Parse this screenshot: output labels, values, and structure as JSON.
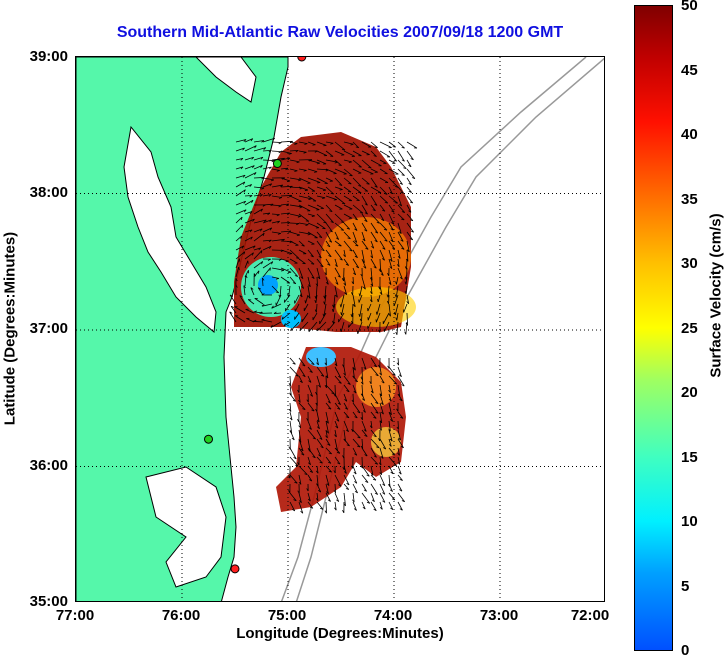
{
  "title": "Southern Mid-Atlantic Raw Velocities 2007/09/18 1200 GMT",
  "map": {
    "xlabel": "Longitude (Degrees:Minutes)",
    "ylabel": "Latitude (Degrees:Minutes)",
    "x_ticks": [
      "77:00",
      "76:00",
      "75:00",
      "74:00",
      "73:00",
      "72:00"
    ],
    "y_ticks": [
      "39:00",
      "38:00",
      "37:00",
      "36:00",
      "35:00"
    ],
    "lon_range": [
      -77,
      -72
    ],
    "lat_range": [
      35,
      39
    ],
    "grid": "dotted",
    "colors": {
      "land": "#55f7aa",
      "coast_outline": "#000000",
      "bathymetry": "#999999",
      "site_red": "#ff2020",
      "site_green": "#20d020"
    }
  },
  "colorbar": {
    "label": "Surface Velocity (cm/s)",
    "ticks": [
      "0",
      "5",
      "10",
      "15",
      "20",
      "25",
      "30",
      "35",
      "40",
      "45",
      "50"
    ],
    "range": [
      0,
      50
    ]
  },
  "sites": [
    {
      "name": "red-site",
      "lon": -74.87,
      "lat": 39.0,
      "color": "#ff2020"
    },
    {
      "name": "green-site",
      "lon": -75.1,
      "lat": 38.22,
      "color": "#20d020"
    },
    {
      "name": "green-site",
      "lon": -75.75,
      "lat": 36.2,
      "color": "#20d020"
    },
    {
      "name": "red-site",
      "lon": -75.5,
      "lat": 35.25,
      "color": "#ff2020"
    }
  ]
}
